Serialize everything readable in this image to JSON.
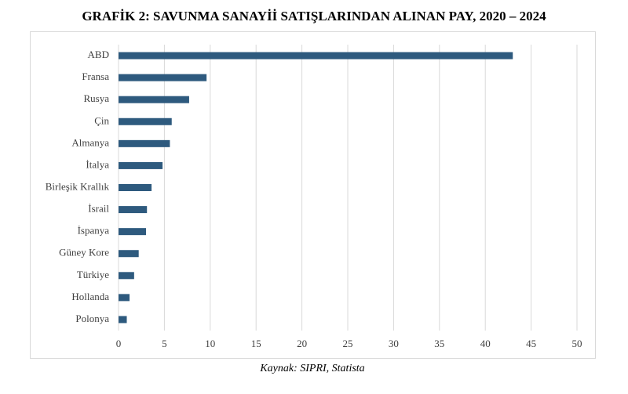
{
  "chart_data": {
    "type": "bar",
    "orientation": "horizontal",
    "title": "GRAFİK 2: SAVUNMA SANAYİİ SATIŞLARINDAN ALINAN PAY, 2020 – 2024",
    "source": "Kaynak: SIPRI, Statista",
    "categories": [
      "ABD",
      "Fransa",
      "Rusya",
      "Çin",
      "Almanya",
      "İtalya",
      "Birleşik Krallık",
      "İsrail",
      "İspanya",
      "Güney Kore",
      "Türkiye",
      "Hollanda",
      "Polonya"
    ],
    "values": [
      43,
      9.6,
      7.7,
      5.8,
      5.6,
      4.8,
      3.6,
      3.1,
      3.0,
      2.2,
      1.7,
      1.2,
      0.9
    ],
    "color": "#2e5a7e",
    "xlim": [
      0,
      50
    ],
    "xticks": [
      0,
      5,
      10,
      15,
      20,
      25,
      30,
      35,
      40,
      45,
      50
    ],
    "grid": true
  }
}
